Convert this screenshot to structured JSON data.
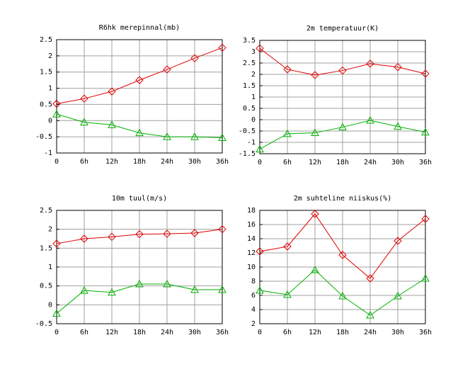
{
  "chart_data": [
    {
      "type": "line",
      "title": "R6hk merepinnal(mb)",
      "categories": [
        "0",
        "6h",
        "12h",
        "18h",
        "24h",
        "30h",
        "36h"
      ],
      "series": [
        {
          "color": "#e00000",
          "marker": "diamond",
          "values": [
            0.52,
            0.68,
            0.9,
            1.25,
            1.58,
            1.93,
            2.25
          ]
        },
        {
          "color": "#00b000",
          "marker": "triangle",
          "values": [
            0.2,
            -0.05,
            -0.13,
            -0.38,
            -0.5,
            -0.5,
            -0.53
          ]
        }
      ],
      "ylim": [
        -1,
        2.5
      ],
      "yticks": [
        -1,
        -0.5,
        0,
        0.5,
        1,
        1.5,
        2,
        2.5
      ],
      "grid": true
    },
    {
      "type": "line",
      "title": "2m temperatuur(K)",
      "categories": [
        "0",
        "6h",
        "12h",
        "18h",
        "24h",
        "30h",
        "36h"
      ],
      "series": [
        {
          "color": "#e00000",
          "marker": "diamond",
          "values": [
            3.15,
            2.22,
            1.97,
            2.17,
            2.47,
            2.32,
            2.03
          ]
        },
        {
          "color": "#00b000",
          "marker": "triangle",
          "values": [
            -1.3,
            -0.62,
            -0.58,
            -0.33,
            -0.03,
            -0.3,
            -0.55
          ]
        }
      ],
      "ylim": [
        -1.5,
        3.5
      ],
      "yticks": [
        -1.5,
        -1,
        -0.5,
        0,
        0.5,
        1,
        1.5,
        2,
        2.5,
        3,
        3.5
      ],
      "grid": true
    },
    {
      "type": "line",
      "title": "10m tuul(m/s)",
      "categories": [
        "0",
        "6h",
        "12h",
        "18h",
        "24h",
        "30h",
        "36h"
      ],
      "series": [
        {
          "color": "#e00000",
          "marker": "diamond",
          "values": [
            1.62,
            1.75,
            1.8,
            1.87,
            1.88,
            1.9,
            2.0
          ]
        },
        {
          "color": "#00b000",
          "marker": "triangle",
          "values": [
            -0.23,
            0.38,
            0.33,
            0.55,
            0.55,
            0.4,
            0.4
          ]
        }
      ],
      "ylim": [
        -0.5,
        2.5
      ],
      "yticks": [
        -0.5,
        0,
        0.5,
        1,
        1.5,
        2,
        2.5
      ],
      "grid": true
    },
    {
      "type": "line",
      "title": "2m suhteline niiskus(%)",
      "categories": [
        "0",
        "6h",
        "12h",
        "18h",
        "24h",
        "30h",
        "36h"
      ],
      "series": [
        {
          "color": "#e00000",
          "marker": "diamond",
          "values": [
            12.2,
            12.9,
            17.5,
            11.7,
            8.4,
            13.7,
            16.8
          ]
        },
        {
          "color": "#00b000",
          "marker": "triangle",
          "values": [
            6.7,
            6.1,
            9.6,
            5.9,
            3.2,
            5.9,
            8.4
          ]
        }
      ],
      "ylim": [
        2,
        18
      ],
      "yticks": [
        2,
        4,
        6,
        8,
        10,
        12,
        14,
        16,
        18
      ],
      "grid": true
    }
  ]
}
